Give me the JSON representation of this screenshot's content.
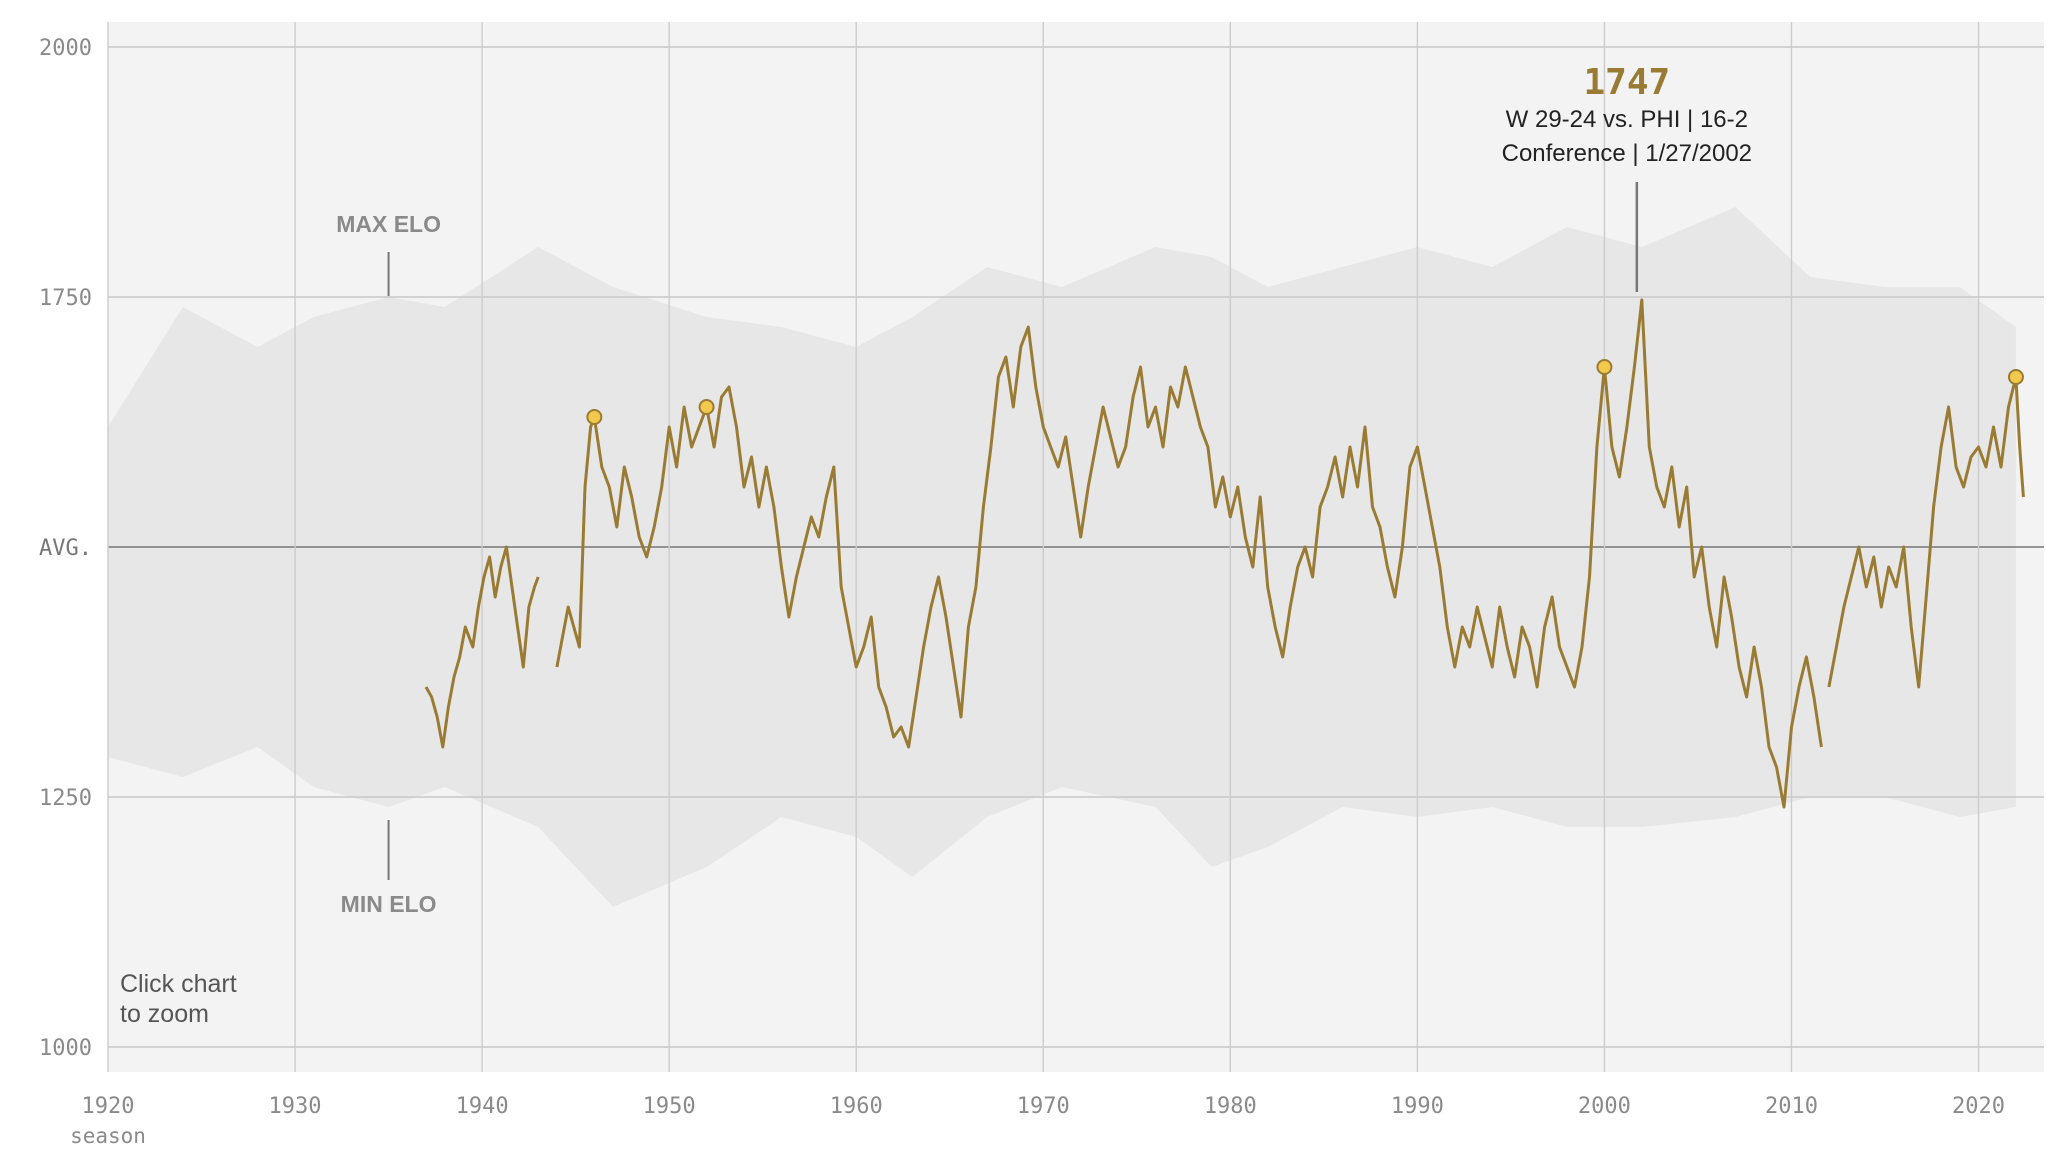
{
  "chart_data": {
    "type": "line",
    "title": "",
    "xlabel": "season",
    "ylabel": "",
    "xlim": [
      1920,
      2023.5
    ],
    "ylim": [
      975,
      2025
    ],
    "y_ticks": [
      {
        "value": 1000,
        "label": "1000"
      },
      {
        "value": 1250,
        "label": "1250"
      },
      {
        "value": 1500,
        "label": "AVG."
      },
      {
        "value": 1750,
        "label": "1750"
      },
      {
        "value": 2000,
        "label": "2000"
      }
    ],
    "x_ticks": [
      "1920",
      "1930",
      "1940",
      "1950",
      "1960",
      "1970",
      "1980",
      "1990",
      "2000",
      "2010",
      "2020"
    ],
    "grid": true,
    "colors": {
      "team_line": "#9a7b34",
      "marker_fill": "#f2c94c",
      "band": "#e6e6e6",
      "plot_bg": "#f3f3f3"
    },
    "band_annotations": {
      "max_label": "MAX ELO",
      "min_label": "MIN ELO",
      "season": 1935
    },
    "peak": {
      "value": "1747",
      "line1": "W 29-24 vs. PHI | 16-2",
      "line2": "Conference | 1/27/2002",
      "season": 2002,
      "elo": 1747
    },
    "hint": {
      "line1": "Click chart",
      "line2": "to zoom"
    },
    "markers": [
      {
        "season": 1946,
        "elo": 1630
      },
      {
        "season": 1952,
        "elo": 1640
      },
      {
        "season": 2000,
        "elo": 1680
      },
      {
        "season": 2022,
        "elo": 1670
      }
    ],
    "band_series": [
      {
        "season": 1920,
        "max": 1620,
        "min": 1290
      },
      {
        "season": 1924,
        "max": 1740,
        "min": 1270
      },
      {
        "season": 1928,
        "max": 1700,
        "min": 1300
      },
      {
        "season": 1931,
        "max": 1730,
        "min": 1260
      },
      {
        "season": 1935,
        "max": 1750,
        "min": 1240
      },
      {
        "season": 1938,
        "max": 1740,
        "min": 1260
      },
      {
        "season": 1943,
        "max": 1800,
        "min": 1220
      },
      {
        "season": 1947,
        "max": 1760,
        "min": 1140
      },
      {
        "season": 1952,
        "max": 1730,
        "min": 1180
      },
      {
        "season": 1956,
        "max": 1720,
        "min": 1230
      },
      {
        "season": 1960,
        "max": 1700,
        "min": 1210
      },
      {
        "season": 1963,
        "max": 1730,
        "min": 1170
      },
      {
        "season": 1967,
        "max": 1780,
        "min": 1230
      },
      {
        "season": 1971,
        "max": 1760,
        "min": 1260
      },
      {
        "season": 1976,
        "max": 1800,
        "min": 1240
      },
      {
        "season": 1979,
        "max": 1790,
        "min": 1180
      },
      {
        "season": 1982,
        "max": 1760,
        "min": 1200
      },
      {
        "season": 1986,
        "max": 1780,
        "min": 1240
      },
      {
        "season": 1990,
        "max": 1800,
        "min": 1230
      },
      {
        "season": 1994,
        "max": 1780,
        "min": 1240
      },
      {
        "season": 1998,
        "max": 1820,
        "min": 1220
      },
      {
        "season": 2002,
        "max": 1800,
        "min": 1220
      },
      {
        "season": 2007,
        "max": 1840,
        "min": 1230
      },
      {
        "season": 2011,
        "max": 1770,
        "min": 1250
      },
      {
        "season": 2015,
        "max": 1760,
        "min": 1250
      },
      {
        "season": 2019,
        "max": 1760,
        "min": 1230
      },
      {
        "season": 2022,
        "max": 1720,
        "min": 1240
      }
    ],
    "series": [
      {
        "segments": [
          [
            [
              1937,
              1360
            ],
            [
              1937.3,
              1350
            ],
            [
              1937.6,
              1330
            ],
            [
              1937.9,
              1300
            ],
            [
              1938.2,
              1340
            ],
            [
              1938.5,
              1370
            ],
            [
              1938.8,
              1390
            ],
            [
              1939.1,
              1420
            ],
            [
              1939.5,
              1400
            ],
            [
              1939.8,
              1440
            ],
            [
              1940.1,
              1470
            ],
            [
              1940.4,
              1490
            ],
            [
              1940.7,
              1450
            ],
            [
              1941,
              1480
            ],
            [
              1941.3,
              1500
            ],
            [
              1941.6,
              1460
            ],
            [
              1941.9,
              1420
            ],
            [
              1942.2,
              1380
            ],
            [
              1942.5,
              1440
            ],
            [
              1942.8,
              1460
            ],
            [
              1943,
              1470
            ]
          ],
          [
            [
              1944,
              1380
            ],
            [
              1944.3,
              1410
            ],
            [
              1944.6,
              1440
            ],
            [
              1944.9,
              1420
            ],
            [
              1945.2,
              1400
            ],
            [
              1945.5,
              1560
            ],
            [
              1945.8,
              1620
            ],
            [
              1946,
              1630
            ],
            [
              1946.4,
              1580
            ],
            [
              1946.8,
              1560
            ],
            [
              1947.2,
              1520
            ],
            [
              1947.6,
              1580
            ],
            [
              1948,
              1550
            ],
            [
              1948.4,
              1510
            ],
            [
              1948.8,
              1490
            ],
            [
              1949.2,
              1520
            ],
            [
              1949.6,
              1560
            ],
            [
              1950,
              1620
            ],
            [
              1950.4,
              1580
            ],
            [
              1950.8,
              1640
            ],
            [
              1951.2,
              1600
            ],
            [
              1951.6,
              1620
            ],
            [
              1952,
              1640
            ],
            [
              1952.4,
              1600
            ],
            [
              1952.8,
              1650
            ],
            [
              1953.2,
              1660
            ],
            [
              1953.6,
              1620
            ],
            [
              1954,
              1560
            ],
            [
              1954.4,
              1590
            ],
            [
              1954.8,
              1540
            ],
            [
              1955.2,
              1580
            ],
            [
              1955.6,
              1540
            ],
            [
              1956,
              1480
            ],
            [
              1956.4,
              1430
            ],
            [
              1956.8,
              1470
            ],
            [
              1957.2,
              1500
            ],
            [
              1957.6,
              1530
            ],
            [
              1958,
              1510
            ],
            [
              1958.4,
              1550
            ],
            [
              1958.8,
              1580
            ],
            [
              1959.2,
              1460
            ],
            [
              1959.6,
              1420
            ],
            [
              1960,
              1380
            ],
            [
              1960.4,
              1400
            ],
            [
              1960.8,
              1430
            ],
            [
              1961.2,
              1360
            ],
            [
              1961.6,
              1340
            ],
            [
              1962,
              1310
            ],
            [
              1962.4,
              1320
            ],
            [
              1962.8,
              1300
            ],
            [
              1963.2,
              1350
            ],
            [
              1963.6,
              1400
            ],
            [
              1964,
              1440
            ],
            [
              1964.4,
              1470
            ],
            [
              1964.8,
              1430
            ],
            [
              1965.2,
              1380
            ],
            [
              1965.6,
              1330
            ],
            [
              1966,
              1420
            ],
            [
              1966.4,
              1460
            ],
            [
              1966.8,
              1540
            ],
            [
              1967.2,
              1600
            ],
            [
              1967.6,
              1670
            ],
            [
              1968,
              1690
            ],
            [
              1968.4,
              1640
            ],
            [
              1968.8,
              1700
            ],
            [
              1969.2,
              1720
            ],
            [
              1969.6,
              1660
            ],
            [
              1970,
              1620
            ],
            [
              1970.4,
              1600
            ],
            [
              1970.8,
              1580
            ],
            [
              1971.2,
              1610
            ],
            [
              1971.6,
              1560
            ],
            [
              1972,
              1510
            ],
            [
              1972.4,
              1560
            ],
            [
              1972.8,
              1600
            ],
            [
              1973.2,
              1640
            ],
            [
              1973.6,
              1610
            ],
            [
              1974,
              1580
            ],
            [
              1974.4,
              1600
            ],
            [
              1974.8,
              1650
            ],
            [
              1975.2,
              1680
            ],
            [
              1975.6,
              1620
            ],
            [
              1976,
              1640
            ],
            [
              1976.4,
              1600
            ],
            [
              1976.8,
              1660
            ],
            [
              1977.2,
              1640
            ],
            [
              1977.6,
              1680
            ],
            [
              1978,
              1650
            ],
            [
              1978.4,
              1620
            ],
            [
              1978.8,
              1600
            ],
            [
              1979.2,
              1540
            ],
            [
              1979.6,
              1570
            ],
            [
              1980,
              1530
            ],
            [
              1980.4,
              1560
            ],
            [
              1980.8,
              1510
            ],
            [
              1981.2,
              1480
            ],
            [
              1981.6,
              1550
            ],
            [
              1982,
              1460
            ],
            [
              1982.4,
              1420
            ],
            [
              1982.8,
              1390
            ],
            [
              1983.2,
              1440
            ],
            [
              1983.6,
              1480
            ],
            [
              1984,
              1500
            ],
            [
              1984.4,
              1470
            ],
            [
              1984.8,
              1540
            ],
            [
              1985.2,
              1560
            ],
            [
              1985.6,
              1590
            ],
            [
              1986,
              1550
            ],
            [
              1986.4,
              1600
            ],
            [
              1986.8,
              1560
            ],
            [
              1987.2,
              1620
            ],
            [
              1987.6,
              1540
            ],
            [
              1988,
              1520
            ],
            [
              1988.4,
              1480
            ],
            [
              1988.8,
              1450
            ],
            [
              1989.2,
              1500
            ],
            [
              1989.6,
              1580
            ],
            [
              1990,
              1600
            ],
            [
              1990.4,
              1560
            ],
            [
              1990.8,
              1520
            ],
            [
              1991.2,
              1480
            ],
            [
              1991.6,
              1420
            ],
            [
              1992,
              1380
            ],
            [
              1992.4,
              1420
            ],
            [
              1992.8,
              1400
            ],
            [
              1993.2,
              1440
            ],
            [
              1993.6,
              1410
            ],
            [
              1994,
              1380
            ],
            [
              1994.4,
              1440
            ],
            [
              1994.8,
              1400
            ],
            [
              1995.2,
              1370
            ],
            [
              1995.6,
              1420
            ],
            [
              1996,
              1400
            ],
            [
              1996.4,
              1360
            ],
            [
              1996.8,
              1420
            ],
            [
              1997.2,
              1450
            ],
            [
              1997.6,
              1400
            ],
            [
              1998,
              1380
            ],
            [
              1998.4,
              1360
            ],
            [
              1998.8,
              1400
            ],
            [
              1999.2,
              1470
            ],
            [
              1999.6,
              1600
            ],
            [
              2000,
              1680
            ],
            [
              2000.4,
              1600
            ],
            [
              2000.8,
              1570
            ],
            [
              2001.2,
              1620
            ],
            [
              2001.6,
              1680
            ],
            [
              2002,
              1747
            ],
            [
              2002.4,
              1600
            ],
            [
              2002.8,
              1560
            ],
            [
              2003.2,
              1540
            ],
            [
              2003.6,
              1580
            ],
            [
              2004,
              1520
            ],
            [
              2004.4,
              1560
            ],
            [
              2004.8,
              1470
            ],
            [
              2005.2,
              1500
            ],
            [
              2005.6,
              1440
            ],
            [
              2006,
              1400
            ],
            [
              2006.4,
              1470
            ],
            [
              2006.8,
              1430
            ],
            [
              2007.2,
              1380
            ],
            [
              2007.6,
              1350
            ],
            [
              2008,
              1400
            ],
            [
              2008.4,
              1360
            ],
            [
              2008.8,
              1300
            ],
            [
              2009.2,
              1280
            ],
            [
              2009.6,
              1240
            ],
            [
              2010,
              1320
            ],
            [
              2010.4,
              1360
            ],
            [
              2010.8,
              1390
            ],
            [
              2011.2,
              1350
            ],
            [
              2011.6,
              1300
            ]
          ],
          [
            [
              2012,
              1360
            ],
            [
              2012.4,
              1400
            ],
            [
              2012.8,
              1440
            ],
            [
              2013.2,
              1470
            ],
            [
              2013.6,
              1500
            ],
            [
              2014,
              1460
            ],
            [
              2014.4,
              1490
            ],
            [
              2014.8,
              1440
            ],
            [
              2015.2,
              1480
            ],
            [
              2015.6,
              1460
            ],
            [
              2016,
              1500
            ],
            [
              2016.4,
              1420
            ],
            [
              2016.8,
              1360
            ],
            [
              2017.2,
              1450
            ],
            [
              2017.6,
              1540
            ],
            [
              2018,
              1600
            ],
            [
              2018.4,
              1640
            ],
            [
              2018.8,
              1580
            ],
            [
              2019.2,
              1560
            ],
            [
              2019.6,
              1590
            ],
            [
              2020,
              1600
            ],
            [
              2020.4,
              1580
            ],
            [
              2020.8,
              1620
            ],
            [
              2021.2,
              1580
            ],
            [
              2021.6,
              1640
            ],
            [
              2022,
              1670
            ],
            [
              2022.2,
              1600
            ],
            [
              2022.4,
              1550
            ]
          ]
        ]
      }
    ]
  }
}
